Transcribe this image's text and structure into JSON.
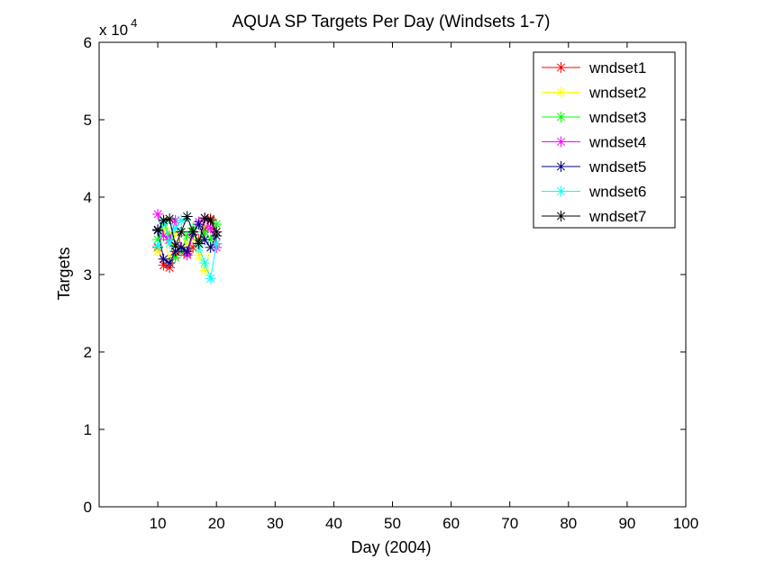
{
  "chart_data": {
    "type": "line",
    "title": "AQUA SP Targets Per Day (Windsets 1-7)",
    "xlabel": "Day (2004)",
    "ylabel": "Targets",
    "y_multiplier_label": "x 10",
    "y_multiplier_exponent": "4",
    "xlim": [
      0,
      100
    ],
    "ylim": [
      0,
      60000
    ],
    "x_ticks": [
      10,
      20,
      30,
      40,
      50,
      60,
      70,
      80,
      90,
      100
    ],
    "x_tick_labels": [
      "10",
      "20",
      "30",
      "40",
      "50",
      "60",
      "70",
      "80",
      "90",
      "100"
    ],
    "y_ticks": [
      0,
      10000,
      20000,
      30000,
      40000,
      50000,
      60000
    ],
    "y_tick_labels": [
      "0",
      "1",
      "2",
      "3",
      "4",
      "5",
      "6"
    ],
    "grid": false,
    "legend_position": "top-right",
    "marker": "asterisk",
    "x": [
      10,
      11,
      12,
      13,
      14,
      15,
      16,
      17,
      18,
      19,
      20
    ],
    "series": [
      {
        "name": "wndset1",
        "color": "#ff0000",
        "values": [
          33500,
          31200,
          30900,
          32500,
          33000,
          32700,
          33500,
          34500,
          35800,
          37200,
          34000
        ]
      },
      {
        "name": "wndset2",
        "color": "#ffff00",
        "values": [
          33000,
          36000,
          31500,
          35500,
          33500,
          34000,
          35000,
          32500,
          30500,
          33500,
          35000
        ]
      },
      {
        "name": "wndset3",
        "color": "#00ff00",
        "values": [
          34500,
          37000,
          35000,
          32200,
          33000,
          35000,
          36000,
          34000,
          35500,
          34500,
          36500
        ]
      },
      {
        "name": "wndset4",
        "color": "#ff00ff",
        "values": [
          37800,
          35000,
          34500,
          37000,
          33500,
          32500,
          35200,
          36800,
          37300,
          36000,
          33500
        ]
      },
      {
        "name": "wndset5",
        "color": "#000080",
        "values": [
          35800,
          32000,
          31500,
          33000,
          33500,
          33000,
          35500,
          36500,
          34500,
          33500,
          35000
        ]
      },
      {
        "name": "wndset6",
        "color": "#00ffff",
        "values": [
          33700,
          36800,
          34000,
          36000,
          37000,
          37500,
          35500,
          33500,
          31500,
          29500,
          34000
        ]
      },
      {
        "name": "wndset7",
        "color": "#000000",
        "values": [
          35700,
          37000,
          37200,
          33700,
          35500,
          37500,
          35500,
          34000,
          37300,
          37000,
          35500
        ]
      }
    ]
  }
}
